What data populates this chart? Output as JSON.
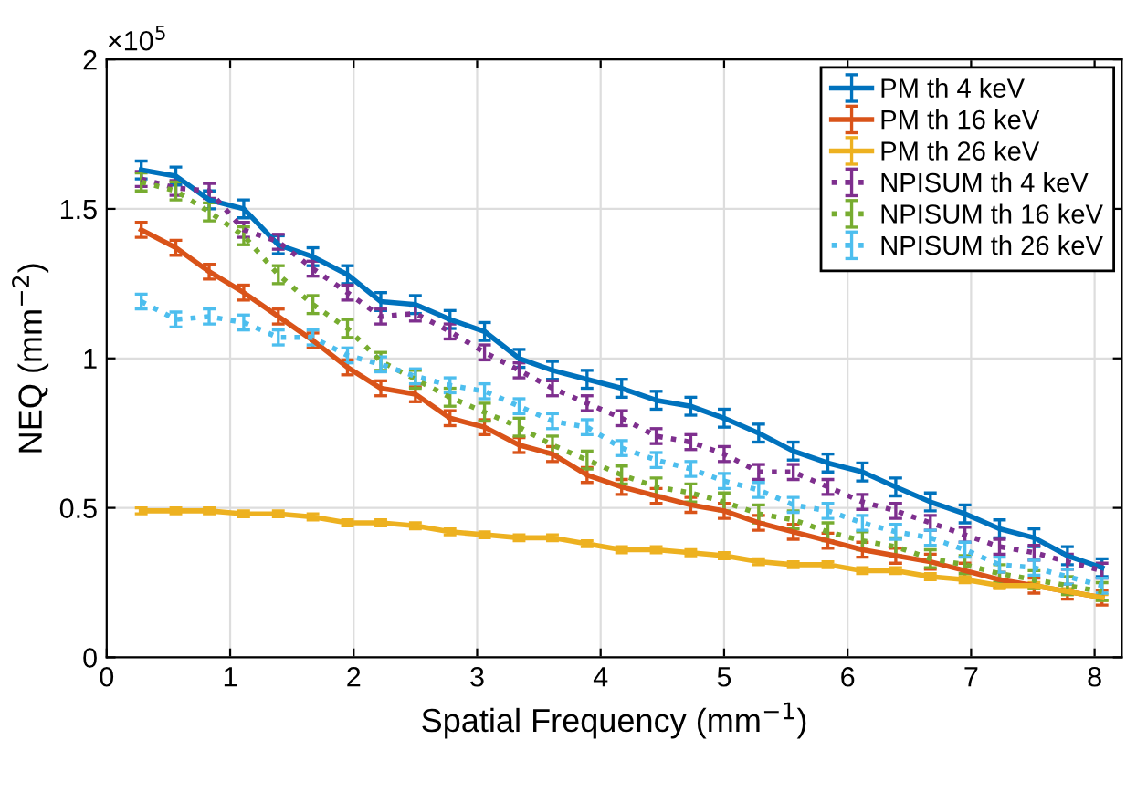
{
  "chart_data": {
    "type": "line",
    "xlabel": "Spatial Frequency (mm$^{−1}$)",
    "ylabel": "NEQ (mm$^{−2}$)",
    "annotations": [
      "×10$^{5}$"
    ],
    "x": [
      0.28,
      0.56,
      0.83,
      1.11,
      1.39,
      1.67,
      1.95,
      2.22,
      2.5,
      2.78,
      3.06,
      3.34,
      3.61,
      3.89,
      4.17,
      4.45,
      4.73,
      5.0,
      5.28,
      5.56,
      5.84,
      6.12,
      6.39,
      6.67,
      6.95,
      7.23,
      7.51,
      7.78,
      8.06
    ],
    "xlim": [
      0,
      8.22
    ],
    "xticks": [
      0,
      1,
      2,
      3,
      4,
      5,
      6,
      7,
      8
    ],
    "ylim": [
      0,
      2
    ],
    "yticks": [
      0,
      0.5,
      1,
      1.5,
      2
    ],
    "grid": true,
    "legend": "top right",
    "marker": "none",
    "series": [
      {
        "name": "PM th 4 keV",
        "color": "#0072bd",
        "line_style": "solid",
        "errors": [
          0.03,
          0.03,
          0.03,
          0.03,
          0.03,
          0.03,
          0.03,
          0.03,
          0.03,
          0.03,
          0.03,
          0.03,
          0.03,
          0.03,
          0.03,
          0.03,
          0.03,
          0.03,
          0.03,
          0.03,
          0.03,
          0.03,
          0.03,
          0.03,
          0.03,
          0.03,
          0.03,
          0.03,
          0.03
        ],
        "values": [
          1.63,
          1.61,
          1.53,
          1.5,
          1.38,
          1.34,
          1.28,
          1.19,
          1.18,
          1.13,
          1.09,
          1.0,
          0.96,
          0.93,
          0.9,
          0.86,
          0.84,
          0.8,
          0.75,
          0.69,
          0.65,
          0.62,
          0.57,
          0.52,
          0.48,
          0.43,
          0.4,
          0.34,
          0.3
        ]
      },
      {
        "name": "PM th 16 keV",
        "color": "#d95319",
        "line_style": "solid",
        "errors": [
          0.025,
          0.025,
          0.025,
          0.025,
          0.025,
          0.025,
          0.025,
          0.025,
          0.025,
          0.025,
          0.025,
          0.025,
          0.025,
          0.025,
          0.025,
          0.025,
          0.025,
          0.025,
          0.025,
          0.025,
          0.025,
          0.025,
          0.025,
          0.025,
          0.025,
          0.025,
          0.025,
          0.025,
          0.025
        ],
        "values": [
          1.43,
          1.37,
          1.29,
          1.22,
          1.14,
          1.06,
          0.97,
          0.9,
          0.88,
          0.8,
          0.77,
          0.71,
          0.68,
          0.61,
          0.57,
          0.54,
          0.51,
          0.49,
          0.45,
          0.42,
          0.39,
          0.36,
          0.34,
          0.32,
          0.29,
          0.26,
          0.24,
          0.22,
          0.2
        ]
      },
      {
        "name": "PM th 26 keV",
        "color": "#edb120",
        "line_style": "solid",
        "errors": [
          0.01,
          0.01,
          0.01,
          0.01,
          0.01,
          0.01,
          0.01,
          0.01,
          0.01,
          0.01,
          0.01,
          0.01,
          0.01,
          0.01,
          0.01,
          0.01,
          0.01,
          0.01,
          0.01,
          0.01,
          0.01,
          0.01,
          0.01,
          0.01,
          0.01,
          0.01,
          0.01,
          0.01,
          0.01
        ],
        "values": [
          0.49,
          0.49,
          0.49,
          0.48,
          0.48,
          0.47,
          0.45,
          0.45,
          0.44,
          0.42,
          0.41,
          0.4,
          0.4,
          0.38,
          0.36,
          0.36,
          0.35,
          0.34,
          0.32,
          0.31,
          0.31,
          0.29,
          0.29,
          0.27,
          0.26,
          0.24,
          0.24,
          0.22,
          0.2
        ]
      },
      {
        "name": "NPISUM th 4 keV",
        "color": "#7e2f8e",
        "line_style": "dotted",
        "errors": [
          0.025,
          0.025,
          0.025,
          0.025,
          0.025,
          0.025,
          0.025,
          0.025,
          0.025,
          0.025,
          0.025,
          0.025,
          0.025,
          0.025,
          0.025,
          0.025,
          0.025,
          0.025,
          0.025,
          0.025,
          0.025,
          0.025,
          0.025,
          0.025,
          0.025,
          0.025,
          0.025,
          0.025,
          0.025
        ],
        "values": [
          1.6,
          1.57,
          1.56,
          1.43,
          1.39,
          1.3,
          1.22,
          1.14,
          1.15,
          1.09,
          1.02,
          0.96,
          0.9,
          0.85,
          0.8,
          0.74,
          0.72,
          0.68,
          0.62,
          0.62,
          0.57,
          0.52,
          0.49,
          0.45,
          0.41,
          0.37,
          0.35,
          0.32,
          0.29
        ]
      },
      {
        "name": "NPISUM th 16 keV",
        "color": "#77ac30",
        "line_style": "dotted",
        "errors": [
          0.03,
          0.03,
          0.03,
          0.03,
          0.03,
          0.03,
          0.03,
          0.03,
          0.03,
          0.03,
          0.03,
          0.03,
          0.03,
          0.03,
          0.03,
          0.03,
          0.03,
          0.03,
          0.03,
          0.03,
          0.03,
          0.03,
          0.03,
          0.03,
          0.03,
          0.03,
          0.03,
          0.03,
          0.03
        ],
        "values": [
          1.59,
          1.56,
          1.49,
          1.41,
          1.28,
          1.18,
          1.1,
          0.99,
          0.93,
          0.87,
          0.82,
          0.77,
          0.71,
          0.66,
          0.61,
          0.57,
          0.55,
          0.52,
          0.48,
          0.46,
          0.42,
          0.39,
          0.37,
          0.33,
          0.31,
          0.28,
          0.26,
          0.24,
          0.22
        ]
      },
      {
        "name": "NPISUM th 26 keV",
        "color": "#4dbeee",
        "line_style": "dotted",
        "errors": [
          0.025,
          0.025,
          0.025,
          0.025,
          0.025,
          0.025,
          0.025,
          0.025,
          0.025,
          0.025,
          0.025,
          0.025,
          0.025,
          0.025,
          0.025,
          0.025,
          0.025,
          0.025,
          0.025,
          0.025,
          0.025,
          0.025,
          0.025,
          0.025,
          0.025,
          0.025,
          0.025,
          0.025,
          0.025
        ],
        "values": [
          1.19,
          1.13,
          1.14,
          1.12,
          1.07,
          1.07,
          1.01,
          0.98,
          0.94,
          0.91,
          0.89,
          0.84,
          0.79,
          0.77,
          0.7,
          0.66,
          0.63,
          0.59,
          0.56,
          0.51,
          0.49,
          0.45,
          0.42,
          0.4,
          0.36,
          0.31,
          0.3,
          0.27,
          0.24
        ]
      }
    ]
  }
}
